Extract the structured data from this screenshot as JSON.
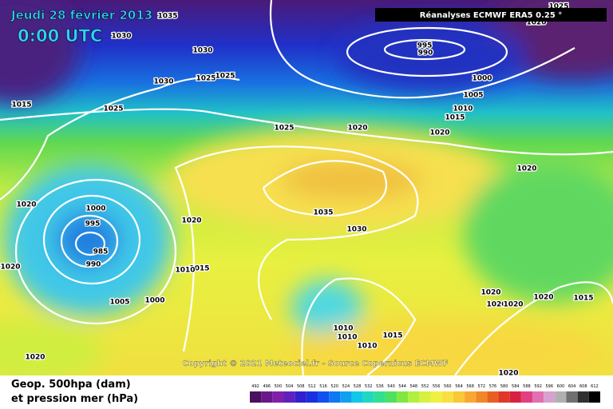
{
  "header": {
    "date": "Jeudi 28 février 2013",
    "time": "0:00 UTC",
    "source": "Réanalyses ECMWF ERA5 0.25 °"
  },
  "copyright": "Copyright © 2021 Meteociel.fr - Source Copernicus ECMWF",
  "legend": {
    "line1": "Geop. 500hpa (dam)",
    "line2": "et pression mer (hPa)",
    "scale": [
      "492",
      "496",
      "500",
      "504",
      "508",
      "512",
      "516",
      "520",
      "524",
      "528",
      "532",
      "536",
      "540",
      "544",
      "548",
      "552",
      "556",
      "560",
      "564",
      "568",
      "572",
      "576",
      "580",
      "584",
      "588",
      "592",
      "596",
      "600",
      "604",
      "608",
      "612"
    ]
  },
  "isobar_labels": [
    "1035",
    "1030",
    "1030",
    "1030",
    "1025",
    "1025",
    "1015",
    "1025",
    "1025",
    "1020",
    "995",
    "990",
    "1025",
    "1020",
    "1000",
    "1005",
    "1010",
    "1015",
    "1020",
    "1020",
    "1020",
    "1000",
    "995",
    "985",
    "990",
    "1020",
    "1035",
    "1030",
    "1015",
    "1010",
    "1020",
    "1005",
    "1000",
    "1020",
    "1020",
    "1020",
    "1020",
    "1015",
    "1010",
    "1010",
    "1015",
    "1010",
    "1020",
    "1020"
  ]
}
